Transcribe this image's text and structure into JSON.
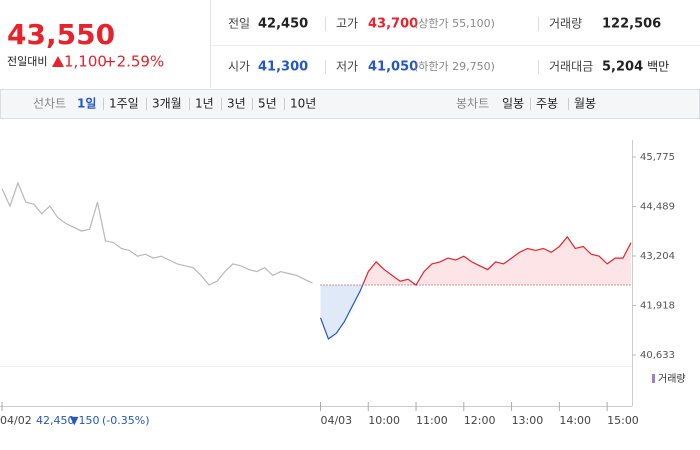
{
  "header": {
    "price": "43,550",
    "change_label": "전일대비",
    "change": "1,100",
    "change_rate": "+2.59%",
    "stats": [
      [
        {
          "label": "전일",
          "value": "42,450"
        },
        {
          "label": "고가",
          "value": "43,700",
          "note": "(상한가 55,100)"
        },
        {
          "label": "거래량",
          "value": "122,506"
        }
      ],
      [
        {
          "label": "시가",
          "value": "41,300"
        },
        {
          "label": "저가",
          "value": "41,050",
          "note": "(하한가 29,750)"
        },
        {
          "label": "거래대금",
          "value": "5,204",
          "unit": "백만"
        }
      ]
    ]
  },
  "tabs": {
    "line_label": "선차트",
    "line_periods": [
      "1일",
      "1주일",
      "3개월",
      "1년",
      "3년",
      "5년",
      "10년"
    ],
    "candle_label": "봉차트",
    "candle_periods": [
      "일봉",
      "주봉",
      "월봉"
    ]
  },
  "chart_data": {
    "type": "line",
    "categories": [
      "04/02",
      null,
      null,
      null,
      null,
      null,
      null,
      null,
      null,
      null,
      null,
      null,
      null,
      null,
      null,
      null,
      null,
      null,
      null,
      null,
      null,
      null,
      null,
      null,
      null,
      null,
      null,
      null,
      null,
      null,
      null,
      null,
      null,
      null,
      null,
      null,
      null,
      null,
      null,
      null,
      "04/03",
      null,
      null,
      null,
      null,
      null,
      "10:00",
      null,
      null,
      null,
      null,
      null,
      "11:00",
      null,
      null,
      null,
      null,
      null,
      "12:00",
      null,
      null,
      null,
      null,
      null,
      "13:00",
      null,
      null,
      null,
      null,
      null,
      "14:00",
      null,
      null,
      null,
      null,
      null,
      "15:00",
      null,
      null,
      null
    ],
    "series": [
      {
        "color": "#b8b8b8",
        "values": [
          44950,
          44500,
          45100,
          44600,
          44550,
          44300,
          44500,
          44200,
          44050,
          43950,
          43850,
          43900,
          44600,
          43600,
          43550,
          43400,
          43350,
          43200,
          43250,
          43150,
          43200,
          43100,
          43000,
          42950,
          42900,
          42700,
          42450,
          42550,
          42800,
          43000,
          42950,
          42850,
          42800,
          42900,
          42700,
          42800,
          42750,
          42700,
          42600,
          42500,
          null,
          null,
          null,
          null,
          null,
          null,
          null,
          null,
          null,
          null,
          null,
          null,
          null,
          null,
          null,
          null,
          null,
          null,
          null,
          null,
          null,
          null,
          null,
          null,
          null,
          null,
          null,
          null,
          null,
          null,
          null,
          null,
          null,
          null,
          null,
          null,
          null,
          null,
          null,
          null
        ]
      },
      {
        "color": "#e8222b",
        "down_color": "#2458c6",
        "fill": "#fde4e6",
        "down_fill": "#dfe9f7",
        "values": [
          null,
          null,
          null,
          null,
          null,
          null,
          null,
          null,
          null,
          null,
          null,
          null,
          null,
          null,
          null,
          null,
          null,
          null,
          null,
          null,
          null,
          null,
          null,
          null,
          null,
          null,
          null,
          null,
          null,
          null,
          null,
          null,
          null,
          null,
          null,
          null,
          null,
          null,
          null,
          null,
          41600,
          41050,
          41200,
          41500,
          41900,
          42300,
          42800,
          43050,
          42850,
          42700,
          42550,
          42600,
          42450,
          42800,
          43000,
          43050,
          43150,
          43100,
          43200,
          43050,
          42950,
          42850,
          43050,
          43000,
          43150,
          43300,
          43400,
          43350,
          43400,
          43300,
          43450,
          43700,
          43400,
          43450,
          43250,
          43200,
          43000,
          43150,
          43150,
          43550
        ]
      }
    ],
    "reference": 42450,
    "ylim": [
      40633,
      45775
    ],
    "yticks": [
      {
        "value": 40633,
        "label": "40,633"
      },
      {
        "value": 41918,
        "label": "41,918"
      },
      {
        "value": 43204,
        "label": "43,204"
      },
      {
        "value": 44489,
        "label": "44,489"
      },
      {
        "value": 45775,
        "label": "45,775"
      }
    ],
    "volume_label": "거래량",
    "footer": {
      "price": "42,450",
      "change": "▼150",
      "rate": "(-0.35%)"
    }
  }
}
